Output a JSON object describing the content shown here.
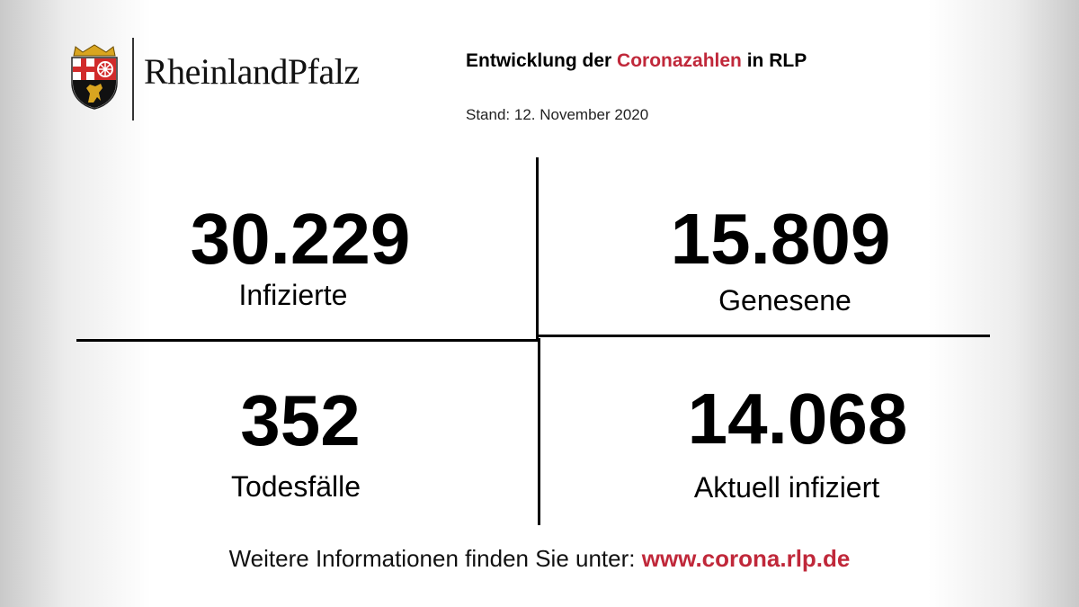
{
  "logo": {
    "text": "RheinlandPfalz"
  },
  "header": {
    "title_part1": "Entwicklung der ",
    "title_highlight": "Coronazahlen",
    "title_part2": " in RLP",
    "date": "Stand: 12. November 2020"
  },
  "stats": {
    "infected": {
      "value": "30.229",
      "label": "Infizierte"
    },
    "recovered": {
      "value": "15.809",
      "label": "Genesene"
    },
    "deaths": {
      "value": "352",
      "label": "Todesfälle"
    },
    "active": {
      "value": "14.068",
      "label": "Aktuell infiziert"
    }
  },
  "footer": {
    "text": "Weitere Informationen finden Sie unter: ",
    "link": "www.corona.rlp.de"
  },
  "colors": {
    "accent": "#c0283a"
  }
}
